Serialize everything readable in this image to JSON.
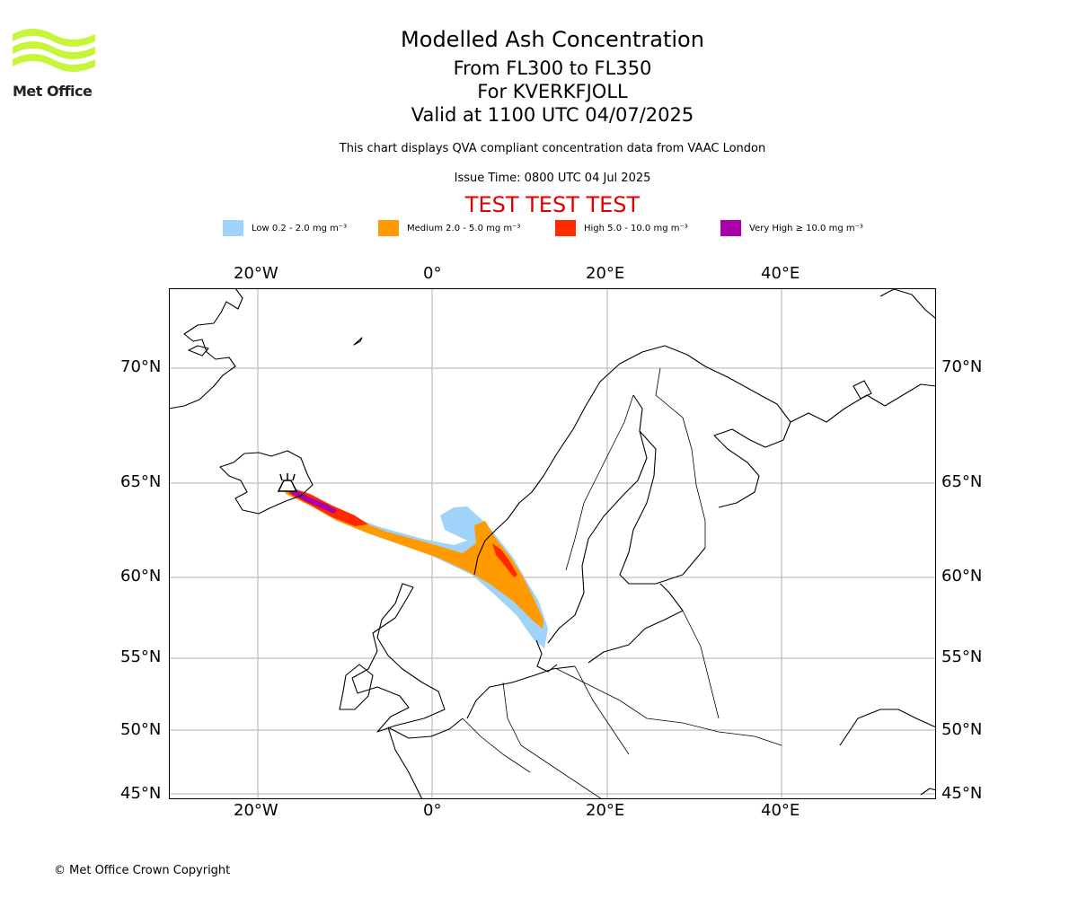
{
  "header": {
    "title": "Modelled Ash Concentration",
    "flight_levels": "From FL300 to FL350",
    "volcano": "For KVERKFJOLL",
    "valid_time": "Valid at 1100 UTC 04/07/2025",
    "description": "This chart displays QVA compliant concentration data from VAAC London",
    "issue_time": "Issue Time: 0800 UTC 04 Jul 2025",
    "test_banner": "TEST TEST TEST"
  },
  "logo": {
    "text": "Met Office",
    "color": "#c6f53a"
  },
  "legend": [
    {
      "label": "Low 0.2 - 2.0 mg m⁻³",
      "color": "#9fd3fa"
    },
    {
      "label": "Medium 2.0 - 5.0 mg m⁻³",
      "color": "#ff9a00"
    },
    {
      "label": "High 5.0 - 10.0 mg m⁻³",
      "color": "#ff2a00"
    },
    {
      "label": "Very High ≥ 10.0 mg m⁻³",
      "color": "#aa00aa"
    }
  ],
  "axes": {
    "lon_labels": [
      "20°W",
      "0°",
      "20°E",
      "40°E"
    ],
    "lat_labels": [
      "70°N",
      "65°N",
      "60°N",
      "55°N",
      "50°N",
      "45°N"
    ]
  },
  "footer": {
    "copyright": "© Met Office Crown Copyright"
  }
}
